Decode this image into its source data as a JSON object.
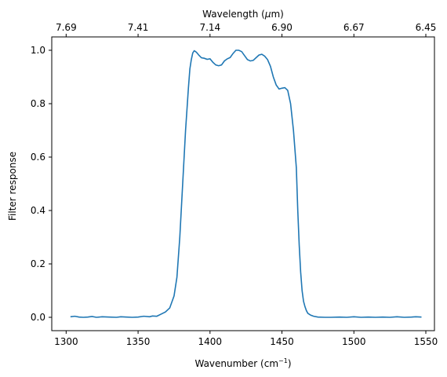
{
  "chart_data": {
    "type": "line",
    "title": "",
    "xlabel": "Wavenumber (cm",
    "xlabel_sup": "−1",
    "xlabel_end": ")",
    "ylabel": "Filter response",
    "top_axis_label": "Wavelength (",
    "top_axis_label_mu": "μ",
    "top_axis_label_end": "m)",
    "xlim": [
      1290,
      1556
    ],
    "ylim": [
      -0.05,
      1.05
    ],
    "x_ticks": [
      1300,
      1350,
      1400,
      1450,
      1500,
      1550
    ],
    "x_tick_labels": [
      "1300",
      "1350",
      "1400",
      "1450",
      "1500",
      "1550"
    ],
    "y_ticks": [
      0.0,
      0.2,
      0.4,
      0.6,
      0.8,
      1.0
    ],
    "y_tick_labels": [
      "0.0",
      "0.2",
      "0.4",
      "0.6",
      "0.8",
      "1.0"
    ],
    "top_ticks": [
      1300,
      1350,
      1400,
      1450,
      1500,
      1550
    ],
    "top_tick_labels": [
      "7.69",
      "7.41",
      "7.14",
      "6.90",
      "6.67",
      "6.45"
    ],
    "grid": false,
    "line_color": "#1f77b4",
    "series": [
      {
        "x": [
          1303,
          1306,
          1309,
          1312,
          1315,
          1318,
          1321,
          1325,
          1330,
          1335,
          1338,
          1342,
          1346,
          1350,
          1354,
          1358,
          1360,
          1363,
          1366,
          1369,
          1372,
          1375,
          1377,
          1379,
          1381,
          1383,
          1385,
          1386,
          1387,
          1388,
          1389,
          1390,
          1391,
          1392,
          1394,
          1396,
          1398,
          1400,
          1402,
          1404,
          1406,
          1408,
          1410,
          1412,
          1414,
          1416,
          1418,
          1420,
          1422,
          1424,
          1426,
          1428,
          1430,
          1432,
          1434,
          1436,
          1438,
          1440,
          1442,
          1444,
          1446,
          1448,
          1450,
          1452,
          1454,
          1456,
          1458,
          1460,
          1461,
          1462,
          1463,
          1464,
          1465,
          1466,
          1467,
          1468,
          1470,
          1472,
          1475,
          1480,
          1484,
          1490,
          1495,
          1500,
          1505,
          1510,
          1515,
          1520,
          1525,
          1530,
          1535,
          1540,
          1543,
          1547
        ],
        "y": [
          0.002,
          0.004,
          0.001,
          0.0,
          0.001,
          0.003,
          0.0,
          0.002,
          0.001,
          0.0,
          0.002,
          0.001,
          0.0,
          0.001,
          0.004,
          0.002,
          0.005,
          0.004,
          0.012,
          0.02,
          0.035,
          0.08,
          0.15,
          0.3,
          0.5,
          0.7,
          0.86,
          0.93,
          0.965,
          0.99,
          0.998,
          0.995,
          0.99,
          0.983,
          0.972,
          0.97,
          0.966,
          0.968,
          0.955,
          0.945,
          0.942,
          0.945,
          0.96,
          0.968,
          0.973,
          0.988,
          1.0,
          1.0,
          0.995,
          0.98,
          0.965,
          0.96,
          0.962,
          0.972,
          0.982,
          0.985,
          0.978,
          0.965,
          0.94,
          0.9,
          0.87,
          0.855,
          0.858,
          0.86,
          0.85,
          0.8,
          0.7,
          0.56,
          0.4,
          0.27,
          0.17,
          0.1,
          0.06,
          0.04,
          0.025,
          0.015,
          0.008,
          0.004,
          0.001,
          0.0,
          0.0,
          0.001,
          0.0,
          0.002,
          0.0,
          0.001,
          0.0,
          0.001,
          0.0,
          0.002,
          0.0,
          0.001,
          0.002,
          0.001
        ]
      }
    ]
  }
}
